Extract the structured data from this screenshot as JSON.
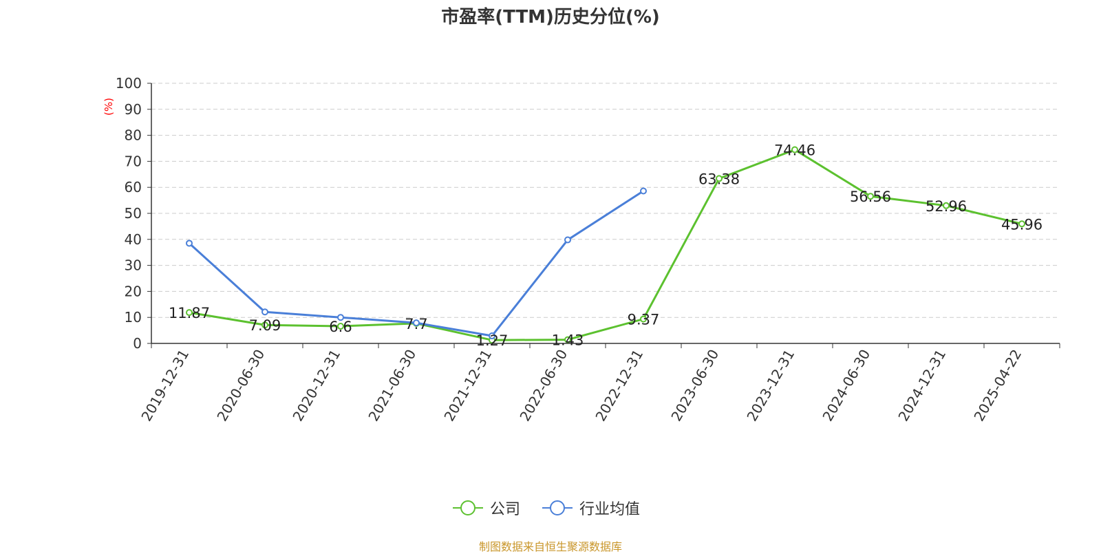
{
  "chart_data": {
    "type": "line",
    "title": "市盈率(TTM)历史分位(%)",
    "ylabel": "(%)",
    "xlabel": "",
    "ylim": [
      0,
      100
    ],
    "yticks": [
      "0",
      "10",
      "20",
      "30",
      "40",
      "50",
      "60",
      "70",
      "80",
      "90",
      "100"
    ],
    "categories": [
      "2019-12-31",
      "2020-06-30",
      "2020-12-31",
      "2021-06-30",
      "2021-12-31",
      "2022-06-30",
      "2022-12-31",
      "2023-06-30",
      "2023-12-31",
      "2024-06-30",
      "2024-12-31",
      "2025-04-22"
    ],
    "grid": true,
    "legend_position": "bottom",
    "series": [
      {
        "name": "公司",
        "color": "#5cc12f",
        "values": [
          11.87,
          7.09,
          6.6,
          7.7,
          1.27,
          1.43,
          9.37,
          63.38,
          74.46,
          56.56,
          52.96,
          45.96
        ],
        "labels": [
          "11.87",
          "7.09",
          "6.6",
          "7.7",
          "1.27",
          "1.43",
          "9.37",
          "63.38",
          "74.46",
          "56.56",
          "52.96",
          "45.96"
        ]
      },
      {
        "name": "行业均值",
        "color": "#4a7fd8",
        "values": [
          38.5,
          12.1,
          10,
          7.9,
          2.9,
          39.8,
          58.6,
          null,
          null,
          null,
          null,
          null
        ]
      }
    ]
  },
  "source": "制图数据来自恒生聚源数据库",
  "colors": {
    "axis": "#333333",
    "grid": "#cccccc",
    "ylabel": "#ff0000",
    "source": "#c9962a"
  }
}
